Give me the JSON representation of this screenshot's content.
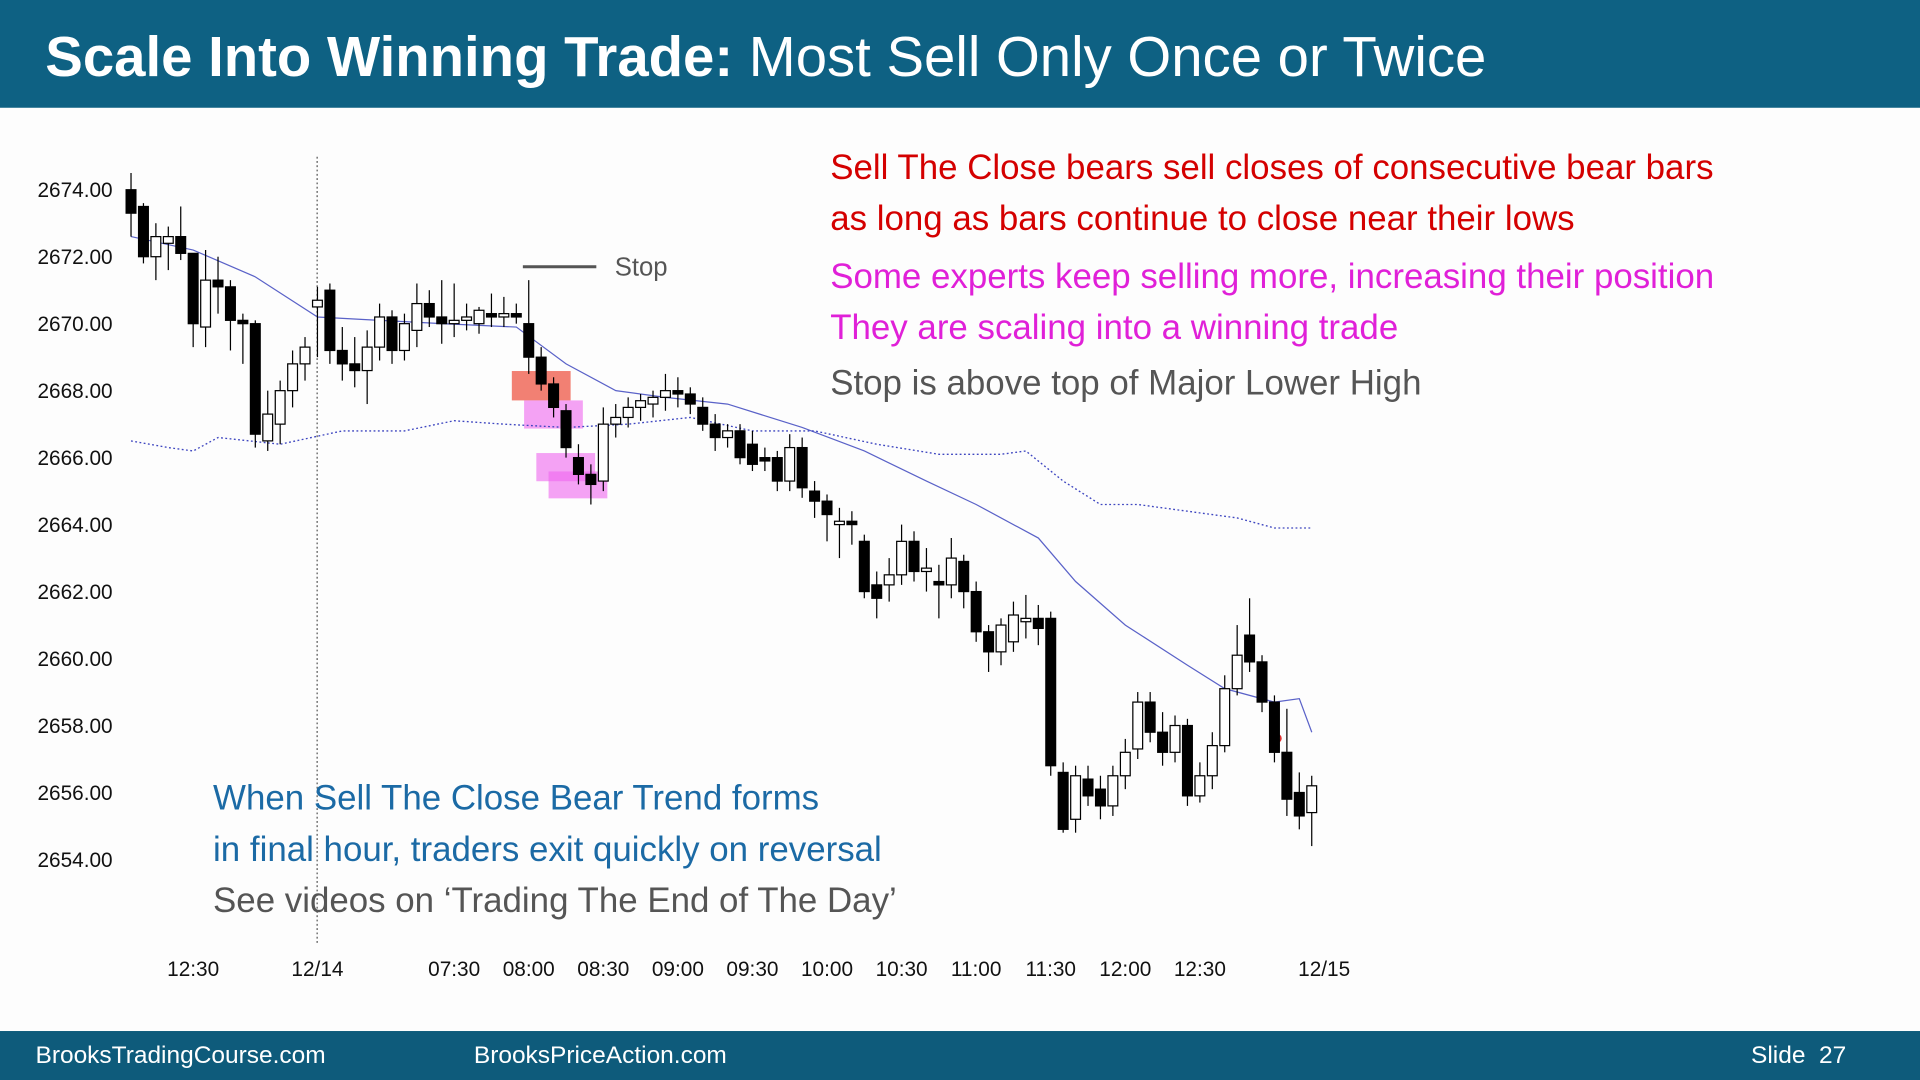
{
  "header": {
    "title_bold": "Scale Into Winning Trade:",
    "title_rest": "Most Sell Only Once or Twice"
  },
  "annotations": [
    {
      "text": "Sell The Close bears sell closes of consecutive bear bars",
      "color": "#d40000"
    },
    {
      "text": "as long as bars continue to close near their lows",
      "color": "#d40000"
    },
    {
      "text": "Some experts keep selling more, increasing their position",
      "color": "#e020d8"
    },
    {
      "text": "They are scaling into a winning trade",
      "color": "#e020d8"
    },
    {
      "text": "Stop is above top of Major Lower High",
      "color": "#555555"
    },
    {
      "text": "When Sell The Close Bear Trend forms",
      "color": "#1b6aa5"
    },
    {
      "text": "in final hour, traders exit quickly on reversal",
      "color": "#1b6aa5"
    },
    {
      "text": "See videos on ‘Trading The End of The Day’",
      "color": "#555555"
    }
  ],
  "footer": {
    "left": "BrooksTradingCourse.com",
    "middle": "BrooksPriceAction.com",
    "slide": "Slide  27"
  },
  "chart_data": {
    "type": "candlestick",
    "categories": [
      null,
      null,
      null,
      null,
      null,
      "12:30",
      null,
      null,
      null,
      null,
      null,
      null,
      null,
      null,
      null,
      "12/14",
      null,
      null,
      null,
      null,
      null,
      null,
      null,
      null,
      null,
      null,
      "07:30",
      null,
      null,
      null,
      null,
      null,
      "08:00",
      null,
      null,
      null,
      null,
      null,
      "08:30",
      null,
      null,
      null,
      null,
      null,
      "09:00",
      null,
      null,
      null,
      null,
      null,
      "09:30",
      null,
      null,
      null,
      null,
      null,
      "10:00",
      null,
      null,
      null,
      null,
      null,
      "10:30",
      null,
      null,
      null,
      null,
      null,
      "11:00",
      null,
      null,
      null,
      null,
      null,
      "11:30",
      null,
      null,
      null,
      null,
      null,
      "12:00",
      null,
      null,
      null,
      null,
      null,
      "12:30",
      null,
      null,
      null,
      null,
      null,
      null,
      null,
      null,
      null,
      "12/15"
    ],
    "open": [
      2674.0,
      2673.5,
      2672.0,
      2672.4,
      2672.6,
      2672.1,
      2669.9,
      2671.3,
      2671.1,
      2670.1,
      2670.0,
      2666.5,
      2667.0,
      2668.0,
      2668.8,
      2670.5,
      2671.0,
      2669.2,
      2668.8,
      2668.6,
      2669.3,
      2670.2,
      2669.2,
      2669.8,
      2670.6,
      2670.2,
      2670.0,
      2670.1,
      2670.0,
      2670.3,
      2670.2,
      2670.3,
      2670.0,
      2669.0,
      2668.2,
      2667.4,
      2666.0,
      2665.5,
      2665.3,
      2667.0,
      2667.2,
      2667.5,
      2667.6,
      2667.8,
      2668.0,
      2667.9,
      2667.5,
      2667.0,
      2666.6,
      2666.8,
      2666.4,
      2666.0,
      2666.0,
      2665.3,
      2666.3,
      2665.0,
      2664.7,
      2664.0,
      2664.1,
      2663.5,
      2662.2,
      2662.2,
      2662.5,
      2663.5,
      2662.6,
      2662.3,
      2662.2,
      2662.9,
      2662.0,
      2660.8,
      2660.2,
      2660.5,
      2661.1,
      2661.2,
      2661.2,
      2656.6,
      2655.2,
      2656.4,
      2656.1,
      2655.6,
      2656.5,
      2657.3,
      2658.7,
      2657.8,
      2657.2,
      2658.0,
      2655.9,
      2656.5,
      2657.4,
      2659.1,
      2660.7,
      2659.9,
      2658.7,
      2657.2,
      2656.0,
      2655.4,
      null
    ],
    "high": [
      2674.5,
      2673.6,
      2673.0,
      2672.9,
      2673.5,
      2672.1,
      2672.2,
      2672.0,
      2671.3,
      2670.3,
      2670.1,
      2668.0,
      2668.3,
      2669.2,
      2669.6,
      2671.1,
      2671.2,
      2669.9,
      2669.6,
      2669.8,
      2670.6,
      2670.4,
      2670.3,
      2671.2,
      2671.0,
      2671.3,
      2671.2,
      2670.6,
      2670.5,
      2670.9,
      2670.8,
      2670.6,
      2671.3,
      2669.3,
      2668.4,
      2667.6,
      2666.4,
      2665.8,
      2667.5,
      2667.6,
      2667.8,
      2667.9,
      2668.0,
      2668.5,
      2668.4,
      2668.1,
      2667.8,
      2667.3,
      2667.0,
      2667.0,
      2666.8,
      2666.3,
      2666.2,
      2666.7,
      2666.6,
      2665.3,
      2664.9,
      2664.5,
      2664.4,
      2663.7,
      2662.6,
      2663.0,
      2664.0,
      2663.8,
      2663.3,
      2662.8,
      2663.6,
      2663.1,
      2662.3,
      2661.0,
      2661.2,
      2661.7,
      2661.9,
      2661.6,
      2661.4,
      2656.9,
      2656.8,
      2656.8,
      2656.5,
      2656.8,
      2657.6,
      2659.0,
      2659.0,
      2658.4,
      2658.3,
      2658.2,
      2656.9,
      2657.8,
      2659.5,
      2661.0,
      2661.8,
      2660.1,
      2658.9,
      2658.5,
      2656.6,
      2656.5,
      null
    ],
    "low": [
      2672.6,
      2671.8,
      2671.3,
      2671.6,
      2671.9,
      2669.3,
      2669.3,
      2670.3,
      2669.2,
      2668.8,
      2666.3,
      2666.2,
      2666.4,
      2667.5,
      2668.3,
      2669.0,
      2668.8,
      2668.3,
      2668.1,
      2667.6,
      2668.9,
      2668.8,
      2668.9,
      2669.3,
      2669.9,
      2669.4,
      2669.6,
      2669.8,
      2669.7,
      2669.9,
      2669.9,
      2670.0,
      2668.5,
      2668.0,
      2667.2,
      2666.0,
      2665.2,
      2664.6,
      2665.0,
      2666.6,
      2666.9,
      2667.1,
      2667.2,
      2667.4,
      2667.5,
      2667.3,
      2666.8,
      2666.2,
      2666.3,
      2665.8,
      2665.6,
      2665.6,
      2665.0,
      2665.0,
      2664.8,
      2664.2,
      2663.5,
      2663.0,
      2663.4,
      2661.8,
      2661.2,
      2661.7,
      2662.2,
      2662.3,
      2662.0,
      2661.2,
      2661.8,
      2661.5,
      2660.5,
      2659.6,
      2659.8,
      2660.2,
      2660.6,
      2660.4,
      2656.5,
      2654.8,
      2654.8,
      2655.6,
      2655.2,
      2655.3,
      2656.1,
      2657.0,
      2657.5,
      2656.8,
      2656.9,
      2655.6,
      2655.7,
      2656.1,
      2657.2,
      2658.9,
      2659.6,
      2658.4,
      2656.9,
      2655.3,
      2654.9,
      2654.4,
      null
    ],
    "close": [
      2673.3,
      2672.0,
      2672.6,
      2672.6,
      2672.1,
      2670.0,
      2671.3,
      2671.1,
      2670.1,
      2670.0,
      2666.7,
      2667.3,
      2668.0,
      2668.8,
      2669.3,
      2670.7,
      2669.2,
      2668.8,
      2668.6,
      2669.3,
      2670.2,
      2669.2,
      2670.0,
      2670.6,
      2670.2,
      2670.0,
      2670.1,
      2670.2,
      2670.4,
      2670.2,
      2670.3,
      2670.2,
      2669.0,
      2668.2,
      2667.5,
      2666.3,
      2665.5,
      2665.2,
      2667.0,
      2667.2,
      2667.5,
      2667.7,
      2667.8,
      2668.0,
      2667.9,
      2667.6,
      2667.0,
      2666.6,
      2666.8,
      2666.0,
      2665.8,
      2665.9,
      2665.3,
      2666.3,
      2665.1,
      2664.7,
      2664.3,
      2664.1,
      2664.0,
      2662.0,
      2661.8,
      2662.5,
      2663.5,
      2662.6,
      2662.7,
      2662.2,
      2663.0,
      2662.0,
      2660.8,
      2660.2,
      2661.0,
      2661.3,
      2661.2,
      2660.9,
      2656.8,
      2654.9,
      2656.5,
      2655.9,
      2655.6,
      2656.5,
      2657.2,
      2658.7,
      2657.8,
      2657.2,
      2658.0,
      2655.9,
      2656.5,
      2657.4,
      2659.1,
      2660.1,
      2659.9,
      2658.7,
      2657.2,
      2655.8,
      2655.3,
      2656.2,
      null
    ],
    "up_color": "#ffffff",
    "down_color": "#000000",
    "wick_color": "#000000",
    "lines": [
      {
        "color": "#5a62c8",
        "style": "solid",
        "x": [
          0,
          5,
          10,
          15,
          20,
          25,
          31,
          35,
          39,
          43,
          48,
          54,
          59,
          64,
          68,
          73,
          76,
          80,
          85,
          88,
          92,
          94,
          95
        ],
        "values": [
          2672.6,
          2672.2,
          2671.4,
          2670.2,
          2670.1,
          2670.0,
          2669.9,
          2668.8,
          2668.0,
          2667.8,
          2667.6,
          2666.9,
          2666.2,
          2665.3,
          2664.6,
          2663.6,
          2662.3,
          2661.0,
          2659.8,
          2659.1,
          2658.7,
          2658.8,
          2657.8
        ]
      },
      {
        "color": "#3e46c0",
        "style": "dotted",
        "x": [
          0,
          3,
          5,
          7,
          12,
          17,
          22,
          26,
          30,
          35,
          40,
          45,
          50,
          55,
          60,
          65,
          70,
          72,
          75,
          78,
          81,
          85,
          89,
          92,
          95
        ],
        "values": [
          2666.5,
          2666.3,
          2666.2,
          2666.6,
          2666.4,
          2666.8,
          2666.8,
          2667.1,
          2667.0,
          2666.9,
          2667.0,
          2667.2,
          2666.8,
          2666.8,
          2666.4,
          2666.1,
          2666.1,
          2666.2,
          2665.3,
          2664.6,
          2664.6,
          2664.4,
          2664.2,
          2663.9,
          2663.9
        ]
      }
    ],
    "stop_line": {
      "label": "Stop",
      "value": 2671.7
    },
    "ylim": [
      2652,
      2675
    ],
    "yticks": [
      {
        "value": 2654,
        "label": "2654.00"
      },
      {
        "value": 2656,
        "label": "2656.00"
      },
      {
        "value": 2658,
        "label": "2658.00"
      },
      {
        "value": 2660,
        "label": "2660.00"
      },
      {
        "value": 2662,
        "label": "2662.00"
      },
      {
        "value": 2664,
        "label": "2664.00"
      },
      {
        "value": 2666,
        "label": "2666.00"
      },
      {
        "value": 2668,
        "label": "2668.00"
      },
      {
        "value": 2670,
        "label": "2670.00"
      },
      {
        "value": 2672,
        "label": "2672.00"
      },
      {
        "value": 2674,
        "label": "2674.00"
      }
    ],
    "grid": false
  }
}
